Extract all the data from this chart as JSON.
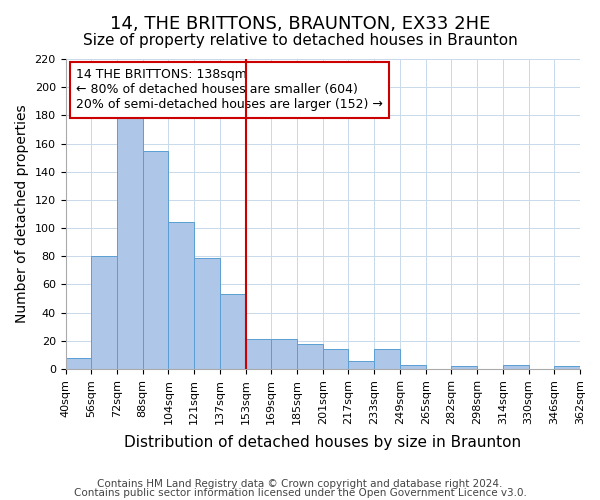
{
  "title": "14, THE BRITTONS, BRAUNTON, EX33 2HE",
  "subtitle": "Size of property relative to detached houses in Braunton",
  "xlabel": "Distribution of detached houses by size in Braunton",
  "ylabel": "Number of detached properties",
  "footnote1": "Contains HM Land Registry data © Crown copyright and database right 2024.",
  "footnote2": "Contains public sector information licensed under the Open Government Licence v3.0.",
  "bin_labels": [
    "40sqm",
    "56sqm",
    "72sqm",
    "88sqm",
    "104sqm",
    "121sqm",
    "137sqm",
    "153sqm",
    "169sqm",
    "185sqm",
    "201sqm",
    "217sqm",
    "233sqm",
    "249sqm",
    "265sqm",
    "282sqm",
    "298sqm",
    "314sqm",
    "330sqm",
    "346sqm",
    "362sqm"
  ],
  "bar_heights": [
    8,
    80,
    181,
    155,
    104,
    79,
    53,
    21,
    21,
    18,
    14,
    6,
    14,
    3,
    0,
    2,
    0,
    3,
    0,
    2
  ],
  "bar_color": "#aec6e8",
  "bar_edge_color": "#5a9fd4",
  "vline_position": 6.5,
  "vline_color": "#cc0000",
  "annotation_title": "14 THE BRITTONS: 138sqm",
  "annotation_line1": "← 80% of detached houses are smaller (604)",
  "annotation_line2": "20% of semi-detached houses are larger (152) →",
  "annotation_box_color": "#ffffff",
  "annotation_box_edge": "#cc0000",
  "ylim": [
    0,
    220
  ],
  "yticks": [
    0,
    20,
    40,
    60,
    80,
    100,
    120,
    140,
    160,
    180,
    200,
    220
  ],
  "title_fontsize": 13,
  "subtitle_fontsize": 11,
  "xlabel_fontsize": 11,
  "ylabel_fontsize": 10,
  "tick_fontsize": 8,
  "annotation_fontsize": 9,
  "footnote_fontsize": 7.5
}
